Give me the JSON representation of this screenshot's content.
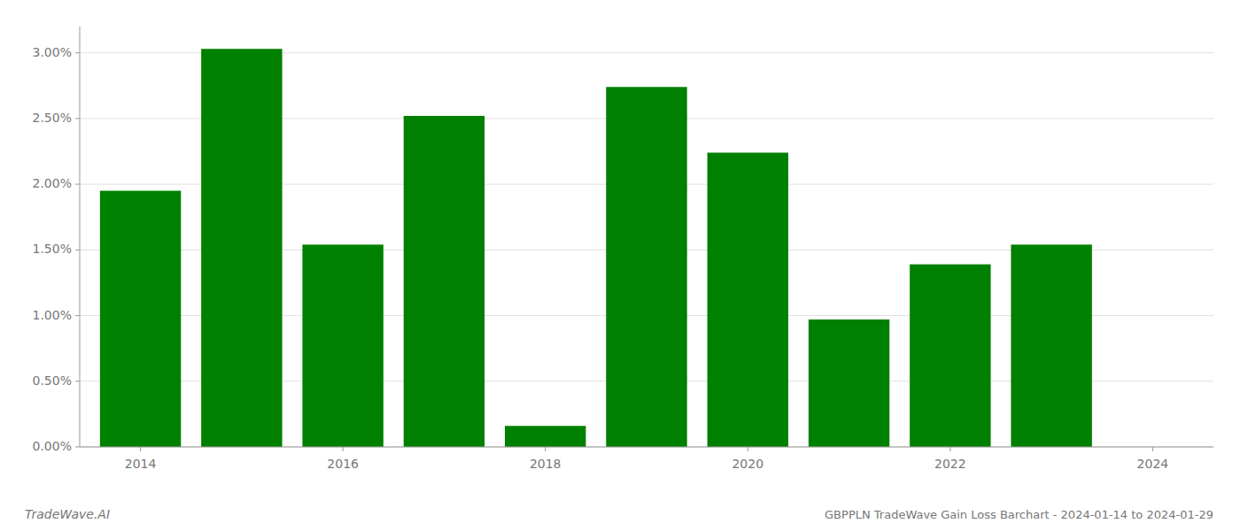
{
  "chart_data": {
    "type": "bar",
    "title": "GBPPLN TradeWave Gain Loss Barchart - 2024-01-14 to 2024-01-29",
    "annotations": [
      "TradeWave.AI"
    ],
    "x": [
      2014,
      2015,
      2016,
      2017,
      2018,
      2019,
      2020,
      2021,
      2022,
      2023,
      2024
    ],
    "values": [
      0.0195,
      0.0303,
      0.0154,
      0.0252,
      0.0016,
      0.0274,
      0.0224,
      0.0097,
      0.0139,
      0.0154,
      0.0
    ],
    "color": "#008000",
    "xlim": [
      2013.4,
      2024.6
    ],
    "xticks": [
      2014,
      2016,
      2018,
      2020,
      2022,
      2024
    ],
    "ylim": [
      0.0,
      0.032
    ],
    "yticks": [
      {
        "value": 0.0,
        "label": "0.00%"
      },
      {
        "value": 0.005,
        "label": "0.50%"
      },
      {
        "value": 0.01,
        "label": "1.00%"
      },
      {
        "value": 0.015,
        "label": "1.50%"
      },
      {
        "value": 0.02,
        "label": "2.00%"
      },
      {
        "value": 0.025,
        "label": "2.50%"
      },
      {
        "value": 0.03,
        "label": "3.00%"
      }
    ],
    "grid": true
  }
}
